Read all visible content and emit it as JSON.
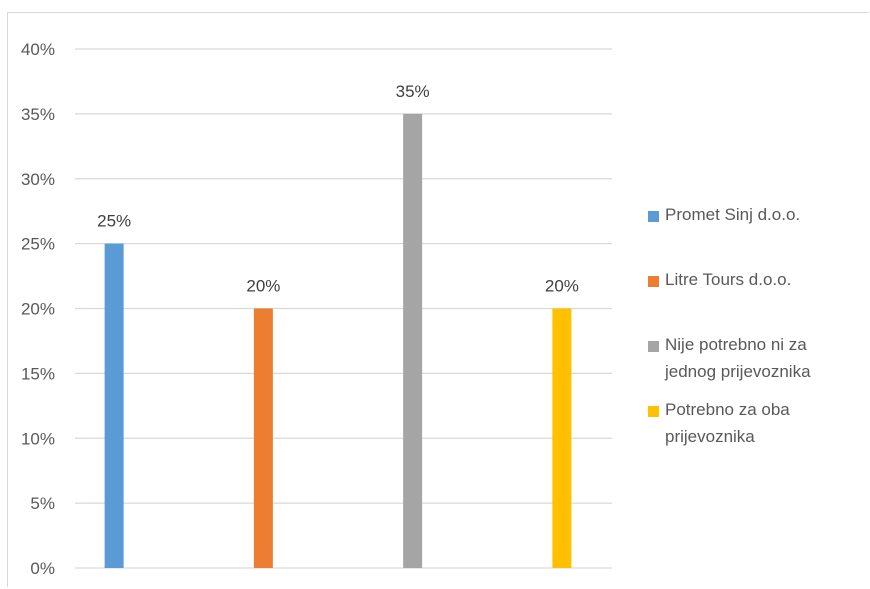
{
  "chart_data": {
    "type": "bar",
    "categories": [
      "Promet Sinj d.o.o.",
      "Litre Tours d.o.o.",
      "Nije potrebno ni za jednog prijevoznika",
      "Potrebno za oba prijevoznika"
    ],
    "values": [
      25,
      20,
      35,
      20
    ],
    "data_labels": [
      "25%",
      "20%",
      "35%",
      "20%"
    ],
    "colors": [
      "#5b9bd5",
      "#ed7d31",
      "#a5a5a5",
      "#ffc000"
    ],
    "ylim": [
      0,
      40
    ],
    "yticks": [
      0,
      5,
      10,
      15,
      20,
      25,
      30,
      35,
      40
    ],
    "ytick_labels": [
      "0%",
      "5%",
      "10%",
      "15%",
      "20%",
      "25%",
      "30%",
      "35%",
      "40%"
    ],
    "grid": true,
    "legend_position": "right",
    "title": "",
    "xlabel": "",
    "ylabel": ""
  },
  "legend": {
    "items": [
      {
        "lines": [
          "Promet Sinj d.o.o."
        ],
        "color": "#5b9bd5"
      },
      {
        "lines": [
          "Litre Tours d.o.o."
        ],
        "color": "#ed7d31"
      },
      {
        "lines": [
          "Nije potrebno ni za",
          "jednog prijevoznika"
        ],
        "color": "#a5a5a5"
      },
      {
        "lines": [
          "Potrebno za oba",
          "prijevoznika"
        ],
        "color": "#ffc000"
      }
    ]
  }
}
